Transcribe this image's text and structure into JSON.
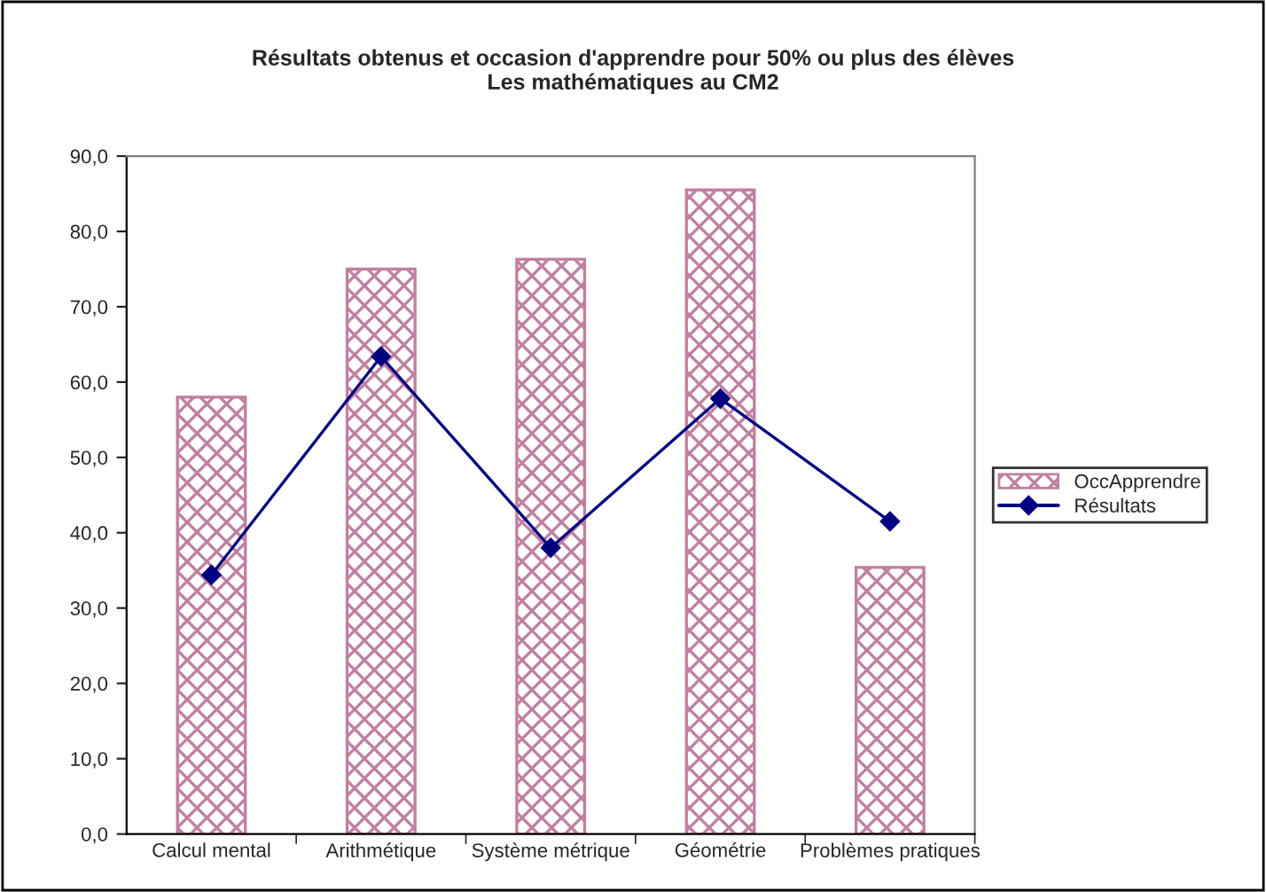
{
  "chart_data": {
    "type": "bar",
    "title": "Résultats obtenus et occasion d'apprendre pour 50% ou plus des élèves\nLes mathématiques au CM2",
    "categories": [
      "Calcul mental",
      "Arithmétique",
      "Système métrique",
      "Géométrie",
      "Problèmes pratiques"
    ],
    "series": [
      {
        "name": "OccApprendre",
        "color": "#c080a0",
        "values": [
          58.0,
          75.0,
          76.3,
          85.5,
          35.4
        ]
      },
      {
        "name": "Résultats",
        "type": "line",
        "color": "#000080",
        "values": [
          34.4,
          63.4,
          38.0,
          57.8,
          41.5
        ]
      }
    ],
    "ylim": [
      0,
      90
    ],
    "yticks": [
      {
        "value": 0,
        "label": "0,0"
      },
      {
        "value": 10,
        "label": "10,0"
      },
      {
        "value": 20,
        "label": "20,0"
      },
      {
        "value": 30,
        "label": "30,0"
      },
      {
        "value": 40,
        "label": "40,0"
      },
      {
        "value": 50,
        "label": "50,0"
      },
      {
        "value": 60,
        "label": "60,0"
      },
      {
        "value": 70,
        "label": "70,0"
      },
      {
        "value": 80,
        "label": "80,0"
      },
      {
        "value": 90,
        "label": "90,0"
      }
    ],
    "grid": false,
    "legend": "right",
    "marker": "diamond",
    "line_style": "solid"
  }
}
